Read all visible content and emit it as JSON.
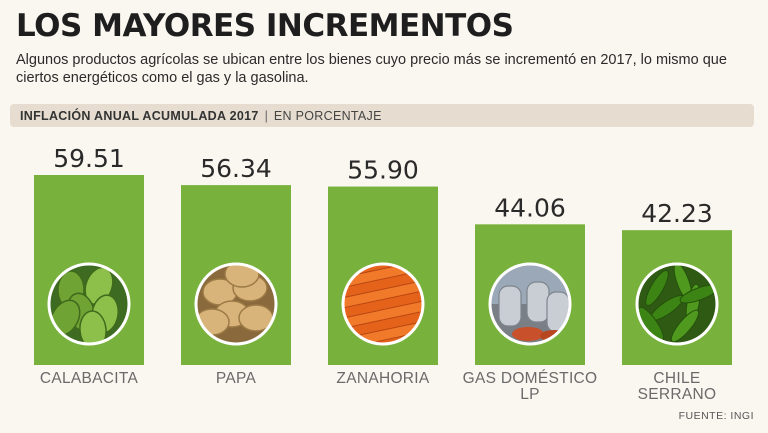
{
  "header": {
    "title": "LOS MAYORES INCREMENTOS",
    "subtitle": "Algunos productos agrícolas se ubican entre los bienes cuyo precio más se incrementó en 2017, lo mismo que ciertos energéticos como el gas y la gasolina."
  },
  "strip": {
    "label": "INFLACIÓN ANUAL ACUMULADA 2017",
    "separator": "|",
    "unit": "EN PORCENTAJE"
  },
  "source": "FUENTE: INGI",
  "colors": {
    "bar": "#78b23d",
    "background": "#faf6f0"
  },
  "chart_data": {
    "type": "bar",
    "categories": [
      [
        "CALABACITA"
      ],
      [
        "PAPA"
      ],
      [
        "ZANAHORIA"
      ],
      [
        "GAS DOMÉSTICO",
        "LP"
      ],
      [
        "CHILE",
        "SERRANO"
      ]
    ],
    "values": [
      59.51,
      56.34,
      55.9,
      44.06,
      42.23
    ],
    "value_labels": [
      "59.51",
      "56.34",
      "55.90",
      "44.06",
      "42.23"
    ],
    "icons": [
      "chayote-photo",
      "potato-photo",
      "carrot-photo",
      "gas-tank-photo",
      "serrano-chile-photo"
    ],
    "ylim": [
      0,
      59.51
    ],
    "grid": false,
    "legend": "none"
  }
}
